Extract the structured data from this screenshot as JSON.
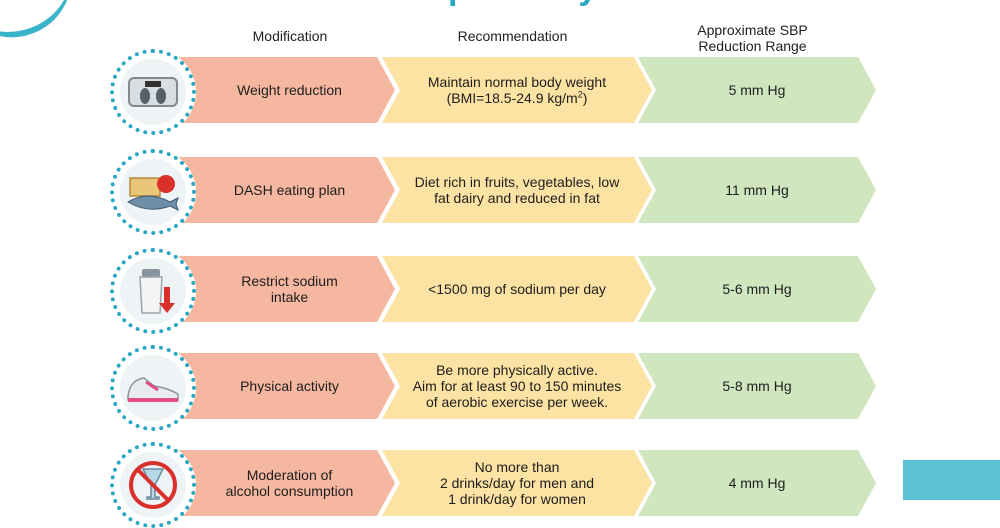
{
  "title": "What Can I Do To Improve My Blood Pressure?",
  "headers": {
    "modification": "Modification",
    "recommendation": "Recommendation",
    "sbp_line1": "Approximate SBP",
    "sbp_line2": "Reduction Range"
  },
  "rows": [
    {
      "icon": "scale-icon",
      "modification": [
        "Weight reduction"
      ],
      "recommendation": [
        "Maintain normal body weight",
        "(BMI=18.5-24.9 kg/m",
        "2",
        ")"
      ],
      "sbp": "5 mm Hg"
    },
    {
      "icon": "healthy-food-icon",
      "modification": [
        "DASH eating plan"
      ],
      "recommendation": [
        "Diet rich in fruits, vegetables, low",
        "fat dairy and reduced in fat"
      ],
      "sbp": "11 mm Hg"
    },
    {
      "icon": "salt-shaker-icon",
      "modification": [
        "Restrict sodium",
        "intake"
      ],
      "recommendation": [
        "<1500 mg of sodium per day"
      ],
      "sbp": "5-6 mm Hg"
    },
    {
      "icon": "sneaker-icon",
      "modification": [
        "Physical activity"
      ],
      "recommendation": [
        "Be more physically active.",
        "Aim for at least 90 to 150 minutes",
        "of aerobic exercise per week."
      ],
      "sbp": "5-8 mm Hg"
    },
    {
      "icon": "no-alcohol-icon",
      "modification": [
        "Moderation of",
        "alcohol consumption"
      ],
      "recommendation": [
        "No more than",
        "2 drinks/day for men and",
        "1 drink/day for women"
      ],
      "sbp": "4 mm Hg"
    }
  ],
  "colors": {
    "accent": "#2aa7c4",
    "modification_fill": "#f6b7a0",
    "recommendation_fill": "#fde3a3",
    "sbp_fill": "#cfe6bf"
  }
}
